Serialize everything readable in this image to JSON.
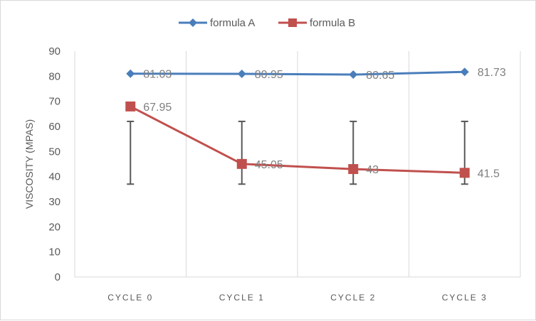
{
  "chart_data": {
    "type": "line",
    "title": "",
    "xlabel": "",
    "ylabel": "VISCOSITY (MPAS)",
    "categories": [
      "CYCLE 0",
      "CYCLE 1",
      "CYCLE 2",
      "CYCLE 3"
    ],
    "ylim": [
      0,
      90
    ],
    "yticks": [
      0,
      10,
      20,
      30,
      40,
      50,
      60,
      70,
      80,
      90
    ],
    "grid": "vertical category separators",
    "legend": "top",
    "series": [
      {
        "name": "formula A",
        "values": [
          81.03,
          80.95,
          80.65,
          81.73
        ],
        "labels": [
          "81.03",
          "80.95",
          "80.65",
          "81.73"
        ],
        "color": "#4a7ebb",
        "marker": "diamond"
      },
      {
        "name": "formula B",
        "values": [
          67.95,
          45.05,
          43,
          41.5
        ],
        "labels": [
          "67.95",
          "45.05",
          "43",
          "41.5"
        ],
        "color": "#c0504d",
        "marker": "square"
      }
    ],
    "error_bars": [
      {
        "low": 37,
        "high": 62
      },
      {
        "low": 37,
        "high": 62
      },
      {
        "low": 37,
        "high": 62
      },
      {
        "low": 37,
        "high": 62
      }
    ],
    "error_bar_color": "#595959"
  }
}
